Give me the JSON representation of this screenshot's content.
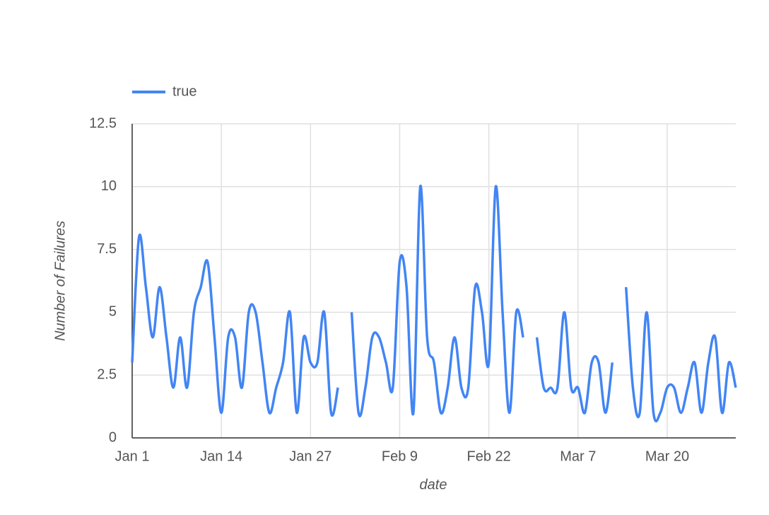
{
  "chart_data": {
    "type": "line",
    "x_label": "date",
    "y_label": "Number of Failures",
    "x": [
      "Jan 1",
      "Jan 2",
      "Jan 3",
      "Jan 4",
      "Jan 5",
      "Jan 6",
      "Jan 7",
      "Jan 8",
      "Jan 9",
      "Jan 10",
      "Jan 11",
      "Jan 12",
      "Jan 13",
      "Jan 14",
      "Jan 15",
      "Jan 16",
      "Jan 17",
      "Jan 18",
      "Jan 19",
      "Jan 20",
      "Jan 21",
      "Jan 22",
      "Jan 23",
      "Jan 24",
      "Jan 25",
      "Jan 26",
      "Jan 27",
      "Jan 28",
      "Jan 29",
      "Jan 30",
      "Jan 31",
      "Feb 1",
      "Feb 2",
      "Feb 3",
      "Feb 4",
      "Feb 5",
      "Feb 6",
      "Feb 7",
      "Feb 8",
      "Feb 9",
      "Feb 10",
      "Feb 11",
      "Feb 12",
      "Feb 13",
      "Feb 14",
      "Feb 15",
      "Feb 16",
      "Feb 17",
      "Feb 18",
      "Feb 19",
      "Feb 20",
      "Feb 21",
      "Feb 22",
      "Feb 23",
      "Feb 24",
      "Feb 25",
      "Feb 26",
      "Feb 27",
      "Feb 28",
      "Mar 1",
      "Mar 2",
      "Mar 3",
      "Mar 4",
      "Mar 5",
      "Mar 6",
      "Mar 7",
      "Mar 8",
      "Mar 9",
      "Mar 10",
      "Mar 11",
      "Mar 12",
      "Mar 13",
      "Mar 14",
      "Mar 15",
      "Mar 16",
      "Mar 17",
      "Mar 18",
      "Mar 19",
      "Mar 20",
      "Mar 21",
      "Mar 22",
      "Mar 23",
      "Mar 24",
      "Mar 25",
      "Mar 26",
      "Mar 27",
      "Mar 28",
      "Mar 29",
      "Mar 30"
    ],
    "series": [
      {
        "name": "true",
        "color": "#4285f4",
        "values": [
          3,
          8,
          6,
          4,
          6,
          4,
          2,
          4,
          2,
          5,
          6,
          7,
          4,
          1,
          4,
          4,
          2,
          5,
          5,
          3,
          1,
          2,
          3,
          5,
          1,
          4,
          3,
          3,
          5,
          1,
          2,
          null,
          5,
          1,
          2,
          4,
          4,
          3,
          2,
          7,
          6,
          1,
          10,
          4,
          3,
          1,
          2,
          4,
          2,
          2,
          6,
          5,
          3,
          10,
          5,
          1,
          5,
          4,
          null,
          4,
          2,
          2,
          2,
          5,
          2,
          2,
          1,
          3,
          3,
          1,
          3,
          null,
          6,
          2,
          1,
          5,
          1,
          1,
          2,
          2,
          1,
          2,
          3,
          1,
          3,
          4,
          1,
          3,
          2
        ]
      }
    ],
    "xticks": [
      "Jan 1",
      "Jan 14",
      "Jan 27",
      "Feb 9",
      "Feb 22",
      "Mar 7",
      "Mar 20"
    ],
    "ylim": [
      0,
      12.5
    ],
    "yticks": [
      0,
      2.5,
      5,
      7.5,
      10,
      12.5
    ],
    "grid": true,
    "legend": "top-left"
  }
}
